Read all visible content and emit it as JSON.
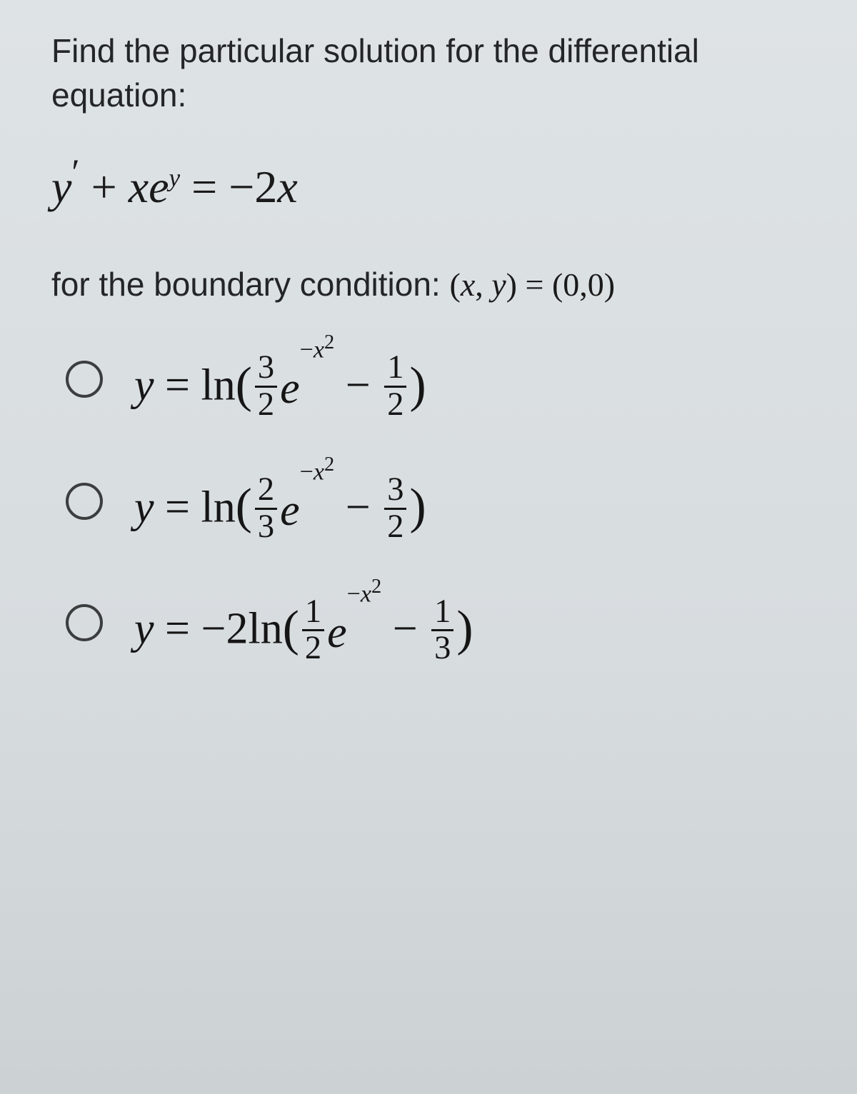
{
  "prompt_line1": "Find the particular solution for the differential",
  "prompt_line2": "equation:",
  "main_equation": {
    "lhs_y": "y",
    "prime": "′",
    "plus": " + ",
    "x": "x",
    "e": "e",
    "exp_y": "y",
    "eq": " = ",
    "rhs": "−2",
    "rhs_x": "x"
  },
  "condition_prefix": "for the boundary condition: ",
  "condition_math_open": "(",
  "condition_math_x": "x",
  "condition_math_comma": ", ",
  "condition_math_y": "y",
  "condition_math_close": ")",
  "condition_eq": " = ",
  "condition_rhs": "(0,0)",
  "options": [
    {
      "y": "y",
      "eq": " = ",
      "ln": "ln",
      "lp": "(",
      "rp": ")",
      "frac1_num": "3",
      "frac1_den": "2",
      "e": "e",
      "exp_neg": "−",
      "exp_x": "x",
      "exp_two": "2",
      "minus": " − ",
      "frac2_num": "1",
      "frac2_den": "2",
      "coef": "",
      "neg_outer": ""
    },
    {
      "y": "y",
      "eq": " = ",
      "ln": "ln",
      "lp": "(",
      "rp": ")",
      "frac1_num": "2",
      "frac1_den": "3",
      "e": "e",
      "exp_neg": "−",
      "exp_x": "x",
      "exp_two": "2",
      "minus": " − ",
      "frac2_num": "3",
      "frac2_den": "2",
      "coef": "",
      "neg_outer": ""
    },
    {
      "y": "y",
      "eq": " = ",
      "ln": "ln",
      "lp": "(",
      "rp": ")",
      "frac1_num": "1",
      "frac1_den": "2",
      "e": "e",
      "exp_neg": "−",
      "exp_x": "x",
      "exp_two": "2",
      "minus": " − ",
      "frac2_num": "1",
      "frac2_den": "3",
      "coef": "2",
      "neg_outer": "−"
    }
  ]
}
